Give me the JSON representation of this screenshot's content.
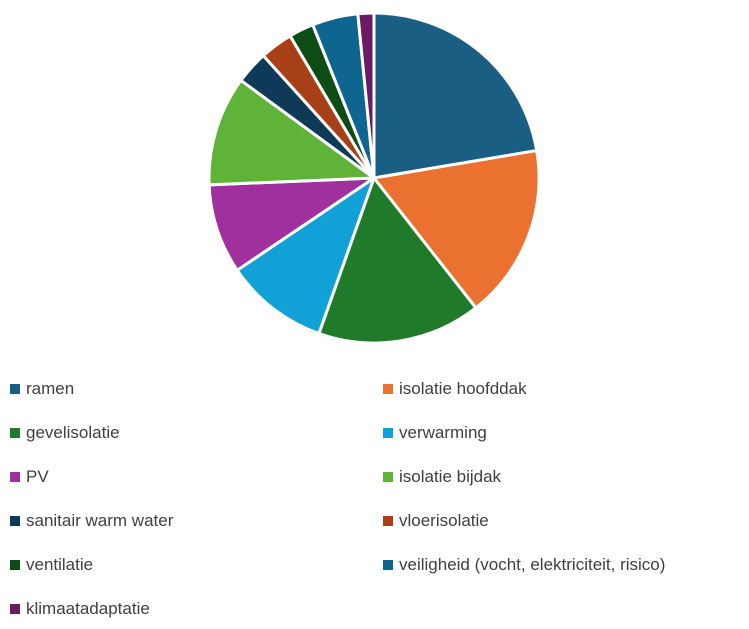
{
  "chart_data": {
    "type": "pie",
    "title": "",
    "categories": [
      "ramen",
      "isolatie hoofddak",
      "gevelisolatie",
      "verwarming",
      "PV",
      "isolatie bijdak",
      "sanitair warm water",
      "vloerisolatie",
      "ventilatie",
      "veiligheid (vocht, elektriciteit, risico)",
      "klimaatadaptatie"
    ],
    "values": [
      22.9,
      17.5,
      16.4,
      10.4,
      9.0,
      11.0,
      3.3,
      3.3,
      2.5,
      4.6,
      1.6
    ],
    "colors": [
      "#1b5e84",
      "#ea7130",
      "#1f7a2a",
      "#12a1d6",
      "#a0309e",
      "#5fb338",
      "#0f3a57",
      "#a84017",
      "#0e4c16",
      "#0e6690",
      "#6b1a64"
    ],
    "legend_position": "bottom",
    "start_angle_deg": 0,
    "direction": "clockwise"
  }
}
